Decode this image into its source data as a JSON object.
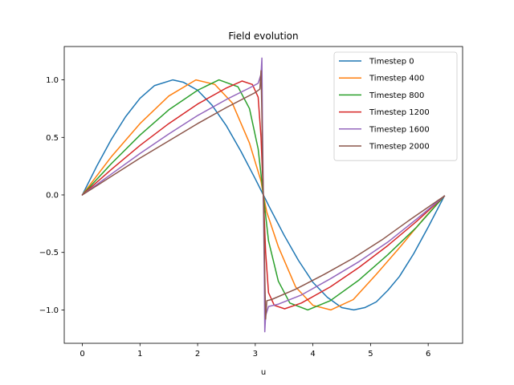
{
  "chart_data": {
    "type": "line",
    "title": "Field evolution",
    "xlabel": "u",
    "ylabel": "",
    "xlim": [
      -0.314,
      6.597
    ],
    "ylim": [
      -1.29,
      1.29
    ],
    "xticks": [
      0,
      1,
      2,
      3,
      4,
      5,
      6
    ],
    "xtick_labels": [
      "0",
      "1",
      "2",
      "3",
      "4",
      "5",
      "6"
    ],
    "yticks": [
      -1.0,
      -0.5,
      0.0,
      0.5,
      1.0
    ],
    "ytick_labels": [
      "−1.0",
      "−0.5",
      "0.0",
      "0.5",
      "1.0"
    ],
    "grid": false,
    "legend_position": "top-right",
    "series": [
      {
        "name": "Timestep 0",
        "color": "#1f77b4",
        "x": [
          0,
          0.25,
          0.5,
          0.75,
          1.0,
          1.25,
          1.57,
          1.75,
          2.0,
          2.25,
          2.5,
          2.75,
          3.0,
          3.14,
          3.25,
          3.5,
          3.75,
          4.0,
          4.25,
          4.5,
          4.71,
          4.9,
          5.1,
          5.3,
          5.5,
          5.75,
          6.0,
          6.28
        ],
        "y": [
          0,
          0.25,
          0.48,
          0.68,
          0.84,
          0.95,
          1.0,
          0.98,
          0.91,
          0.78,
          0.6,
          0.38,
          0.14,
          0.0,
          -0.11,
          -0.35,
          -0.57,
          -0.76,
          -0.89,
          -0.98,
          -1.0,
          -0.98,
          -0.93,
          -0.83,
          -0.71,
          -0.51,
          -0.28,
          -0.01
        ]
      },
      {
        "name": "Timestep 400",
        "color": "#ff7f0e",
        "x": [
          0,
          0.5,
          1.0,
          1.5,
          1.97,
          2.3,
          2.6,
          2.9,
          3.1,
          3.14,
          3.2,
          3.4,
          3.7,
          4.0,
          4.31,
          4.7,
          5.1,
          5.5,
          5.9,
          6.28
        ],
        "y": [
          0,
          0.33,
          0.62,
          0.86,
          1.0,
          0.96,
          0.8,
          0.45,
          0.12,
          0.0,
          -0.15,
          -0.45,
          -0.8,
          -0.96,
          -1.0,
          -0.91,
          -0.69,
          -0.46,
          -0.22,
          -0.01
        ]
      },
      {
        "name": "Timestep 800",
        "color": "#2ca02c",
        "x": [
          0,
          0.5,
          1.0,
          1.5,
          2.0,
          2.37,
          2.7,
          2.9,
          3.05,
          3.14,
          3.23,
          3.4,
          3.6,
          3.91,
          4.3,
          4.8,
          5.3,
          5.8,
          6.28
        ],
        "y": [
          0,
          0.27,
          0.52,
          0.74,
          0.91,
          1.0,
          0.94,
          0.75,
          0.4,
          0.0,
          -0.4,
          -0.75,
          -0.94,
          -1.0,
          -0.92,
          -0.74,
          -0.52,
          -0.28,
          -0.01
        ]
      },
      {
        "name": "Timestep 1200",
        "color": "#d62728",
        "x": [
          0,
          0.5,
          1.0,
          1.5,
          2.0,
          2.5,
          2.77,
          2.95,
          3.05,
          3.1,
          3.14,
          3.18,
          3.23,
          3.33,
          3.51,
          3.8,
          4.3,
          4.8,
          5.3,
          5.8,
          6.28
        ],
        "y": [
          0,
          0.22,
          0.43,
          0.62,
          0.79,
          0.93,
          0.99,
          0.96,
          0.85,
          0.5,
          0.0,
          -0.5,
          -0.85,
          -0.96,
          -0.99,
          -0.94,
          -0.8,
          -0.63,
          -0.44,
          -0.23,
          -0.01
        ]
      },
      {
        "name": "Timestep 1600",
        "color": "#9467bd",
        "x": [
          0,
          0.5,
          1.0,
          1.5,
          2.0,
          2.5,
          2.9,
          3.05,
          3.1,
          3.115,
          3.125,
          3.14,
          3.155,
          3.165,
          3.18,
          3.23,
          3.4,
          3.8,
          4.3,
          4.8,
          5.3,
          5.8,
          6.28
        ],
        "y": [
          0,
          0.18,
          0.36,
          0.53,
          0.69,
          0.83,
          0.93,
          0.97,
          1.05,
          1.19,
          0.6,
          0.0,
          -0.6,
          -1.19,
          -1.05,
          -0.97,
          -0.95,
          -0.87,
          -0.73,
          -0.58,
          -0.41,
          -0.21,
          -0.01
        ]
      },
      {
        "name": "Timestep 2000",
        "color": "#8c564b",
        "x": [
          0,
          0.5,
          1.0,
          1.5,
          2.0,
          2.5,
          3.0,
          3.08,
          3.1,
          3.115,
          3.13,
          3.14,
          3.15,
          3.165,
          3.18,
          3.2,
          3.28,
          3.7,
          4.2,
          4.7,
          5.2,
          5.7,
          6.28
        ],
        "y": [
          0,
          0.16,
          0.32,
          0.47,
          0.62,
          0.76,
          0.89,
          0.92,
          1.08,
          0.7,
          0.2,
          0.0,
          -0.2,
          -0.7,
          -1.08,
          -0.92,
          -0.91,
          -0.82,
          -0.69,
          -0.55,
          -0.39,
          -0.21,
          -0.01
        ]
      }
    ]
  }
}
